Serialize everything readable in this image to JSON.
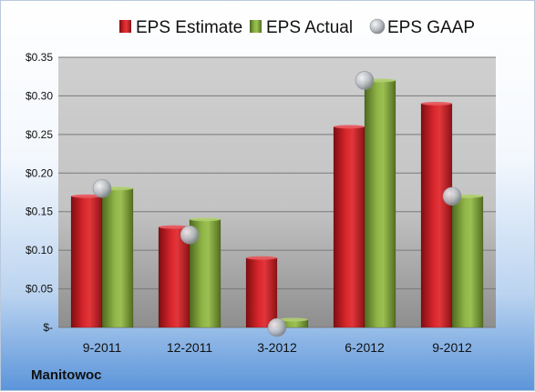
{
  "company": "Manitowoc",
  "chart_data": {
    "type": "bar",
    "categories": [
      "9-2011",
      "12-2011",
      "3-2012",
      "6-2012",
      "9-2012"
    ],
    "series": [
      {
        "name": "EPS Estimate",
        "kind": "bar",
        "color": "#c42025",
        "values": [
          0.17,
          0.13,
          0.09,
          0.26,
          0.29
        ]
      },
      {
        "name": "EPS Actual",
        "kind": "bar",
        "color": "#7fa23c",
        "values": [
          0.18,
          0.14,
          0.01,
          0.32,
          0.17
        ]
      },
      {
        "name": "EPS GAAP",
        "kind": "marker",
        "color": "#b8bcc2",
        "values": [
          0.18,
          0.12,
          0.0,
          0.32,
          0.17
        ]
      }
    ],
    "ylim": [
      0,
      0.35
    ],
    "yticks": [
      {
        "value": 0.35,
        "label": "$0.35"
      },
      {
        "value": 0.3,
        "label": "$0.30"
      },
      {
        "value": 0.25,
        "label": "$0.25"
      },
      {
        "value": 0.2,
        "label": "$0.20"
      },
      {
        "value": 0.15,
        "label": "$0.15"
      },
      {
        "value": 0.1,
        "label": "$0.10"
      },
      {
        "value": 0.05,
        "label": "$0.05"
      },
      {
        "value": 0.0,
        "label": "$-"
      }
    ],
    "grid": true,
    "legend": "top"
  }
}
